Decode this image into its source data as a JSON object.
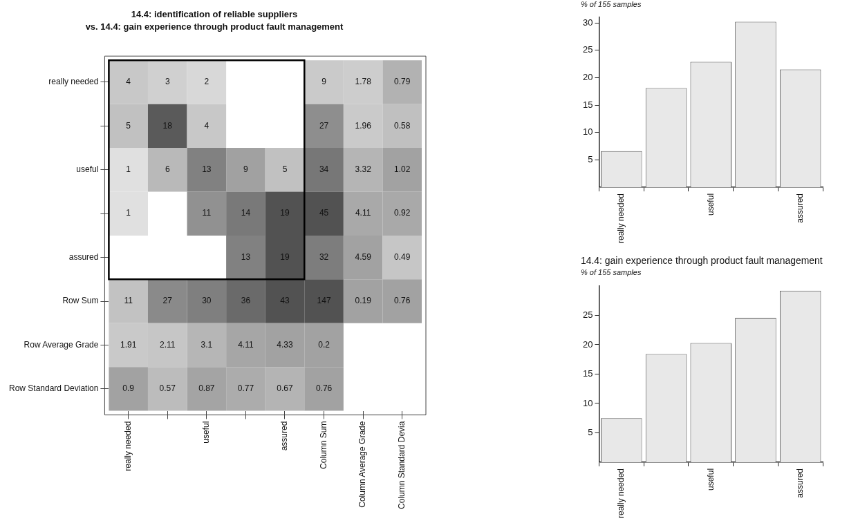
{
  "chart_data": [
    {
      "type": "heatmap",
      "title": "14.4: identification of reliable suppliers",
      "subtitle": "vs. 14.4: gain experience through product fault management",
      "categories": [
        "really needed",
        null,
        "useful",
        null,
        "assured",
        "Column Sum",
        "Column Average Grade",
        "Column Standard Devia"
      ],
      "y_categories": [
        "really needed",
        null,
        "useful",
        null,
        "assured",
        "Row Sum",
        "Row Average Grade",
        "Row Standard Deviation"
      ],
      "cells": [
        [
          4,
          3,
          2,
          null,
          null,
          9,
          1.78,
          0.79
        ],
        [
          5,
          18,
          4,
          null,
          null,
          27,
          1.96,
          0.58
        ],
        [
          1,
          6,
          13,
          9,
          5,
          34,
          3.32,
          1.02
        ],
        [
          1,
          null,
          11,
          14,
          19,
          45,
          4.11,
          0.92
        ],
        [
          null,
          null,
          null,
          13,
          19,
          32,
          4.59,
          0.49
        ],
        [
          11,
          27,
          30,
          36,
          43,
          147,
          0.19,
          0.76
        ],
        [
          1.91,
          2.11,
          3.1,
          4.11,
          4.33,
          0.2,
          null,
          null
        ],
        [
          0.9,
          0.57,
          0.87,
          0.77,
          0.67,
          0.76,
          null,
          null
        ]
      ],
      "data_labels": true,
      "grid": false,
      "legend": false
    },
    {
      "type": "bar",
      "subtitle": "% of 155 samples",
      "categories": [
        "really needed",
        null,
        "useful",
        null,
        "assured"
      ],
      "values": [
        6.6,
        18.1,
        22.9,
        30.2,
        21.5
      ],
      "color": "#e8e8e8",
      "ylim": [
        0,
        31
      ],
      "yticks": [
        5,
        10,
        15,
        20,
        25,
        30
      ],
      "grid": false,
      "legend": false
    },
    {
      "type": "bar",
      "title": "14.4: gain experience through product fault management",
      "subtitle": "% of 155 samples",
      "categories": [
        "really needed",
        null,
        "useful",
        null,
        "assured"
      ],
      "values": [
        7.5,
        18.4,
        20.3,
        24.6,
        29.2
      ],
      "color": "#e8e8e8",
      "ylim": [
        0,
        30
      ],
      "yticks": [
        5,
        10,
        15,
        20,
        25
      ],
      "grid": false,
      "legend": false
    }
  ]
}
